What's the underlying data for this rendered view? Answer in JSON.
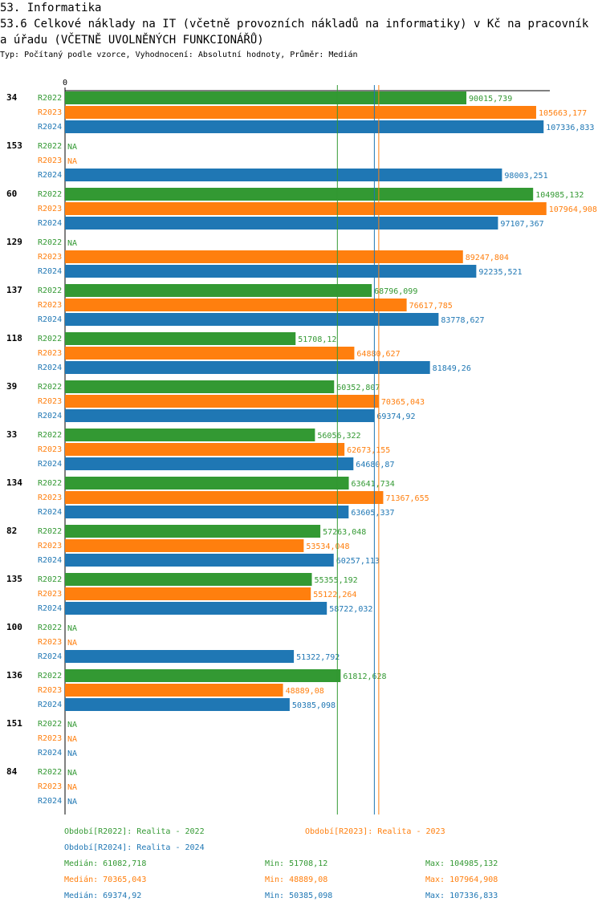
{
  "chart_data": {
    "type": "bar",
    "section": "53. Informatika",
    "title": "53.6 Celkové náklady na IT (včetně provozních nákladů na informatiky) v Kč na pracovníka úřadu (VČETNĚ UVOLNĚNÝCH FUNKCIONÁŘŮ)",
    "subtitle": "Typ: Počítaný podle vzorce, Vyhodnocení: Absolutní hodnoty, Průměr: Medián",
    "orientation": "horizontal",
    "xlim": [
      0,
      108730
    ],
    "xticks": [
      0
    ],
    "categories": [
      "34",
      "153",
      "60",
      "129",
      "137",
      "118",
      "39",
      "33",
      "134",
      "82",
      "135",
      "100",
      "136",
      "151",
      "84"
    ],
    "series": [
      {
        "name": "Období[R2022]: Realita - 2022",
        "label": "R2022",
        "color": "#339933",
        "values": [
          90015.739,
          null,
          104985.132,
          null,
          68796.099,
          51708.12,
          60352.807,
          56056.322,
          63641.734,
          57263.048,
          55355.192,
          null,
          61812.628,
          null,
          null
        ],
        "value_labels": [
          "90015,739",
          "NA",
          "104985,132",
          "NA",
          "68796,099",
          "51708,12",
          "60352,807",
          "56056,322",
          "63641,734",
          "57263,048",
          "55355,192",
          "NA",
          "61812,628",
          "NA",
          "NA"
        ],
        "median": {
          "value": 61082.718,
          "label": "Medián: 61082,718"
        },
        "min": "Min: 51708,12",
        "max": "Max: 104985,132"
      },
      {
        "name": "Období[R2023]: Realita - 2023",
        "label": "R2023",
        "color": "#ff7f0e",
        "values": [
          105663.177,
          null,
          107964.908,
          89247.804,
          76617.785,
          64880.627,
          70365.043,
          62673.155,
          71367.655,
          53534.048,
          55122.264,
          null,
          48889.08,
          null,
          null
        ],
        "value_labels": [
          "105663,177",
          "NA",
          "107964,908",
          "89247,804",
          "76617,785",
          "64880,627",
          "70365,043",
          "62673,155",
          "71367,655",
          "53534,048",
          "55122,264",
          "NA",
          "48889,08",
          "NA",
          "NA"
        ],
        "median": {
          "value": 70365.043,
          "label": "Medián: 70365,043"
        },
        "min": "Min: 48889,08",
        "max": "Max: 107964,908"
      },
      {
        "name": "Období[R2024]: Realita - 2024",
        "label": "R2024",
        "color": "#1f77b4",
        "values": [
          107336.833,
          98003.251,
          97107.367,
          92235.521,
          83778.627,
          81849.26,
          69374.92,
          64680.87,
          63605.337,
          60257.113,
          58722.032,
          51322.792,
          50385.098,
          null,
          null
        ],
        "value_labels": [
          "107336,833",
          "98003,251",
          "97107,367",
          "92235,521",
          "83778,627",
          "81849,26",
          "69374,92",
          "64680,87",
          "63605,337",
          "60257,113",
          "58722,032",
          "51322,792",
          "50385,098",
          "NA",
          "NA"
        ],
        "median": {
          "value": 69374.92,
          "label": "Medián: 69374,92"
        },
        "min": "Min: 50385,098",
        "max": "Max: 107336,833"
      }
    ]
  }
}
